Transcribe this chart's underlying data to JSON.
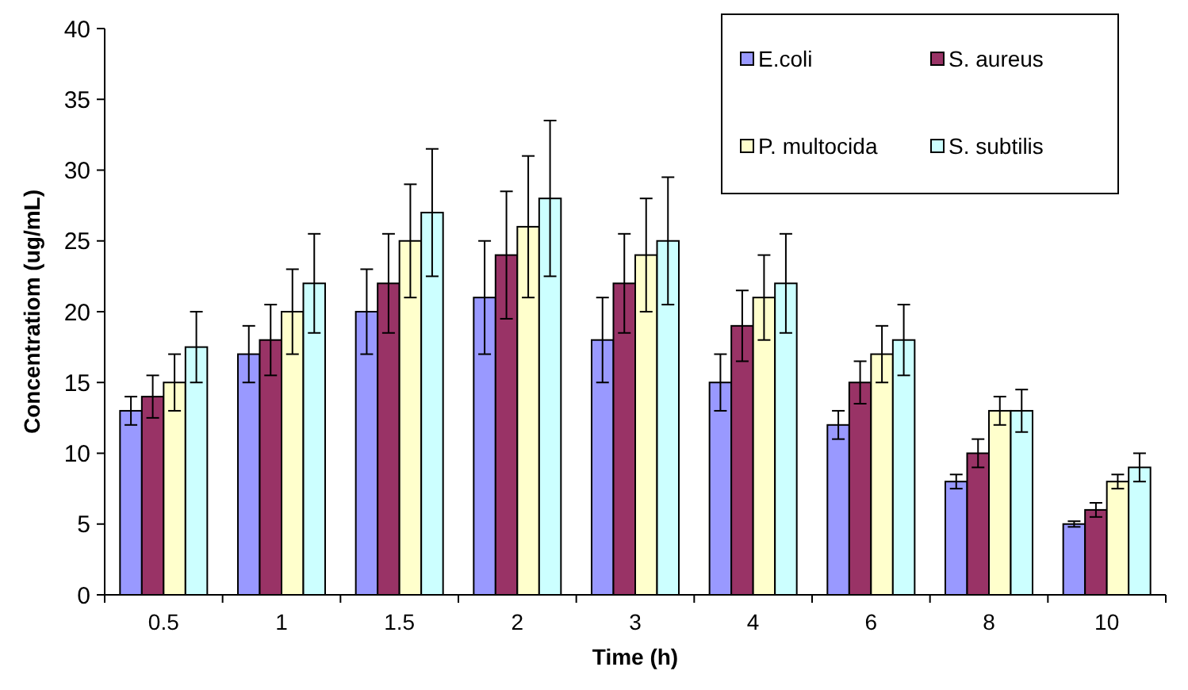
{
  "chart_data": {
    "type": "bar",
    "xlabel": "Time (h)",
    "ylabel": "Concentratiom (ug/mL)",
    "categories": [
      "0.5",
      "1",
      "1.5",
      "2",
      "3",
      "4",
      "6",
      "8",
      "10"
    ],
    "series": [
      {
        "name": "E.coli",
        "color": "#9999ff",
        "values": [
          13,
          17,
          20,
          21,
          18,
          15,
          12,
          8,
          5
        ],
        "errors": [
          1,
          2,
          3,
          4,
          3,
          2,
          1,
          0.5,
          0.2
        ]
      },
      {
        "name": "S. aureus",
        "color": "#993366",
        "values": [
          14,
          18,
          22,
          24,
          22,
          19,
          15,
          10,
          6
        ],
        "errors": [
          1.5,
          2.5,
          3.5,
          4.5,
          3.5,
          2.5,
          1.5,
          1,
          0.5
        ]
      },
      {
        "name": "P. multocida",
        "color": "#ffffcc",
        "values": [
          15,
          20,
          25,
          26,
          24,
          21,
          17,
          13,
          8
        ],
        "errors": [
          2,
          3,
          4,
          5,
          4,
          3,
          2,
          1,
          0.5
        ]
      },
      {
        "name": "S. subtilis",
        "color": "#ccffff",
        "values": [
          17.5,
          22,
          27,
          28,
          25,
          22,
          18,
          13,
          9
        ],
        "errors": [
          2.5,
          3.5,
          4.5,
          5.5,
          4.5,
          3.5,
          2.5,
          1.5,
          1
        ]
      }
    ],
    "ylim": [
      0,
      40
    ],
    "yticks": [
      0,
      5,
      10,
      15,
      20,
      25,
      30,
      35,
      40
    ],
    "grid": false,
    "legend": "top right"
  }
}
